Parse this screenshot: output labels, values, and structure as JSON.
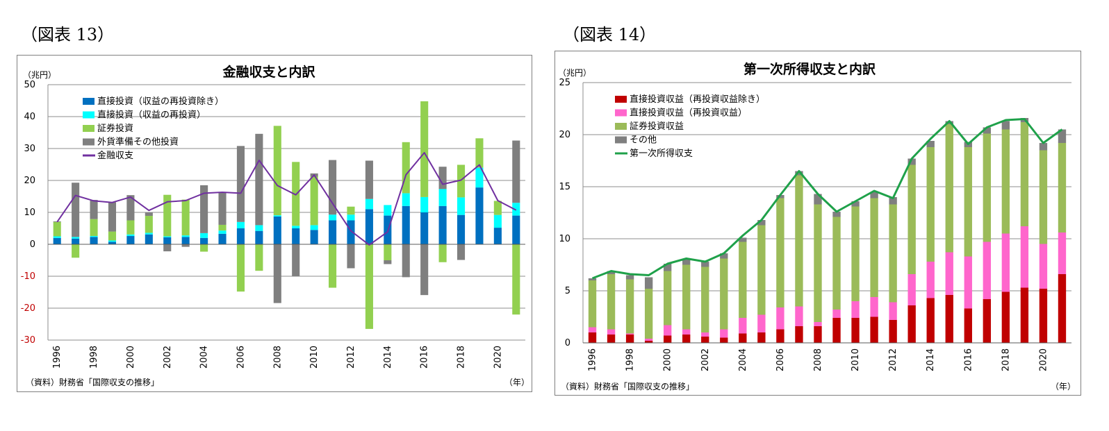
{
  "figures": [
    {
      "label": "（図表 13）"
    },
    {
      "label": "（図表 14）"
    }
  ],
  "chart_data": [
    {
      "type": "bar",
      "title": "金融収支と内訳",
      "ylabel": "（兆円）",
      "xlabel": "（年）",
      "source": "（資料）財務省「国際収支の推移」",
      "ylim": [
        -30,
        50
      ],
      "yticks": [
        50,
        40,
        30,
        20,
        10,
        0,
        -10,
        -20,
        -30
      ],
      "negative_tick_color": "#c00000",
      "x": [
        1996,
        1997,
        1998,
        1999,
        2000,
        2001,
        2002,
        2003,
        2004,
        2005,
        2006,
        2007,
        2008,
        2009,
        2010,
        2011,
        2012,
        2013,
        2014,
        2015,
        2016,
        2017,
        2018,
        2019,
        2020,
        2021
      ],
      "xticks": [
        "1996",
        "1998",
        "2000",
        "2002",
        "2004",
        "2006",
        "2008",
        "2010",
        "2012",
        "2014",
        "2016",
        "2018",
        "2020"
      ],
      "stacked": true,
      "series": [
        {
          "name": "直接投資（収益の再投資除き）",
          "color": "#0070c0",
          "values": [
            2.0,
            1.8,
            2.3,
            0.8,
            2.6,
            3.1,
            2.2,
            2.3,
            2.0,
            3.3,
            5.0,
            4.2,
            8.7,
            5.0,
            4.5,
            7.5,
            7.5,
            11.0,
            9.0,
            12.0,
            10.0,
            12.0,
            9.2,
            17.8,
            5.2,
            9.0
          ]
        },
        {
          "name": "直接投資（収益の再投資）",
          "color": "#00ffff",
          "values": [
            0.5,
            0.5,
            0.3,
            0.4,
            0.5,
            0.5,
            0.3,
            0.5,
            1.5,
            1.0,
            2.0,
            1.8,
            0.4,
            0.8,
            1.5,
            1.8,
            1.8,
            3.2,
            3.3,
            4.0,
            4.8,
            5.3,
            5.5,
            6.2,
            4.0,
            4.0
          ]
        },
        {
          "name": "証券投資",
          "color": "#92d050",
          "values": [
            4.5,
            -4.2,
            5.3,
            2.8,
            4.4,
            5.3,
            13.0,
            11.2,
            -2.3,
            1.8,
            -14.8,
            -8.3,
            28.0,
            20.0,
            15.2,
            -13.6,
            2.5,
            -26.5,
            -5.0,
            16.0,
            30.0,
            -5.6,
            10.2,
            9.2,
            4.4,
            -22.0
          ]
        },
        {
          "name": "外貨準備その他投資",
          "color": "#7f7f7f",
          "values": [
            0.2,
            17.0,
            6.0,
            9.2,
            7.9,
            1.0,
            -2.2,
            -0.8,
            15.0,
            10.1,
            23.8,
            28.6,
            -18.4,
            -10.0,
            1.0,
            17.1,
            -7.5,
            12.0,
            -1.2,
            -10.3,
            -15.9,
            7.0,
            -4.9,
            0.0,
            0.0,
            19.5
          ]
        }
      ],
      "line": {
        "name": "金融収支",
        "color": "#7030a0",
        "values": [
          7.0,
          15.3,
          13.6,
          13.1,
          14.8,
          10.6,
          13.3,
          13.7,
          16.0,
          16.3,
          16.0,
          26.3,
          18.4,
          15.5,
          21.7,
          12.8,
          4.2,
          -0.2,
          3.9,
          21.8,
          28.7,
          18.8,
          20.1,
          24.9,
          13.7,
          10.7
        ]
      }
    },
    {
      "type": "bar",
      "title": "第一次所得収支と内訳",
      "ylabel": "（兆円）",
      "xlabel": "（年）",
      "source": "（資料）財務省「国際収支の推移」",
      "ylim": [
        0,
        25
      ],
      "yticks": [
        25,
        20,
        15,
        10,
        5,
        0
      ],
      "x": [
        1996,
        1997,
        1998,
        1999,
        2000,
        2001,
        2002,
        2003,
        2004,
        2005,
        2006,
        2007,
        2008,
        2009,
        2010,
        2011,
        2012,
        2013,
        2014,
        2015,
        2016,
        2017,
        2018,
        2019,
        2020,
        2021
      ],
      "xticks": [
        "1996",
        "1998",
        "2000",
        "2002",
        "2004",
        "2006",
        "2008",
        "2010",
        "2012",
        "2014",
        "2016",
        "2018",
        "2020"
      ],
      "stacked": true,
      "series": [
        {
          "name": "直接投資収益（再投資収益除き）",
          "color": "#c00000",
          "values": [
            1.0,
            0.8,
            0.8,
            0.2,
            0.7,
            0.8,
            0.6,
            0.5,
            0.9,
            1.0,
            1.3,
            1.6,
            1.6,
            2.4,
            2.4,
            2.5,
            2.2,
            3.6,
            4.3,
            4.6,
            3.3,
            4.2,
            4.9,
            5.3,
            5.2,
            6.6
          ]
        },
        {
          "name": "直接投資収益（再投資収益）",
          "color": "#ff66cc",
          "values": [
            0.5,
            0.5,
            0.1,
            0.2,
            1.0,
            0.5,
            0.4,
            0.8,
            1.5,
            1.7,
            2.1,
            1.9,
            0.4,
            0.8,
            1.6,
            1.9,
            1.7,
            3.0,
            3.5,
            4.1,
            5.0,
            5.5,
            5.6,
            5.9,
            4.3,
            4.0
          ]
        },
        {
          "name": "証券投資収益",
          "color": "#9bbb59",
          "values": [
            4.5,
            5.3,
            5.2,
            4.8,
            5.2,
            6.2,
            6.3,
            6.8,
            7.3,
            8.6,
            10.5,
            12.6,
            11.3,
            8.9,
            9.1,
            9.5,
            9.4,
            10.5,
            11.0,
            12.3,
            10.5,
            10.4,
            10.0,
            10.0,
            9.0,
            8.6
          ]
        },
        {
          "name": "その他",
          "color": "#7f7f7f",
          "values": [
            0.2,
            0.3,
            0.4,
            1.1,
            0.7,
            0.6,
            0.5,
            0.5,
            0.4,
            0.5,
            0.3,
            0.4,
            1.0,
            0.5,
            0.5,
            0.6,
            0.7,
            0.6,
            0.6,
            0.3,
            0.5,
            0.6,
            0.8,
            0.4,
            0.7,
            1.3
          ]
        }
      ],
      "line": {
        "name": "第一次所得収支",
        "color": "#1fa14a",
        "values": [
          6.2,
          6.9,
          6.6,
          6.5,
          7.6,
          8.1,
          7.8,
          8.6,
          10.3,
          11.8,
          14.2,
          16.5,
          14.3,
          12.6,
          13.6,
          14.6,
          13.9,
          17.7,
          19.6,
          21.3,
          19.1,
          20.7,
          21.4,
          21.5,
          19.2,
          20.5
        ]
      }
    }
  ]
}
